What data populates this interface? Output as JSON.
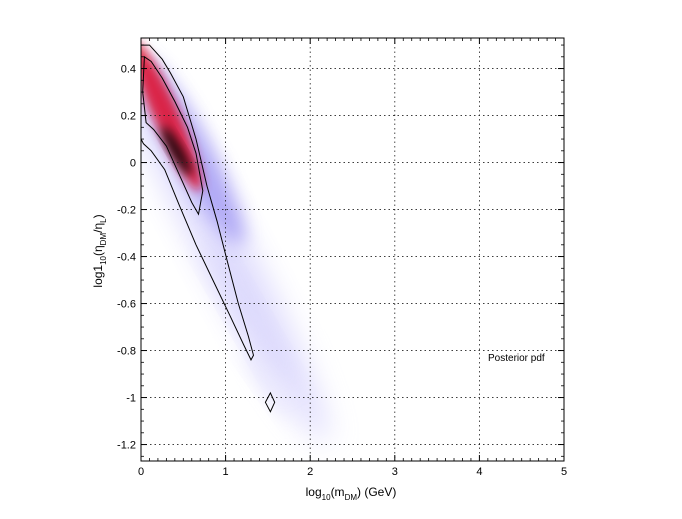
{
  "chart_data": {
    "type": "heatmap",
    "title": "",
    "annotation": "Posterior pdf",
    "xlabel": {
      "prefix": "log",
      "sub1": "10",
      "mid": "(m",
      "sub2": "DM",
      "suffix": ") (GeV)"
    },
    "ylabel": {
      "prefix": "log1",
      "sub1": "10",
      "mid": "(η",
      "sub2": "DM",
      "mid2": "/η",
      "sub3": "L",
      "suffix": ")"
    },
    "xlim": [
      0,
      5
    ],
    "ylim": [
      -1.27,
      0.53
    ],
    "xticks": [
      0,
      1,
      2,
      3,
      4,
      5
    ],
    "yticks": [
      0.4,
      0.2,
      0,
      -0.2,
      -0.4,
      -0.6,
      -0.8,
      -1,
      -1.2
    ],
    "xtick_labels": [
      "0",
      "1",
      "2",
      "3",
      "4",
      "5"
    ],
    "ytick_labels": [
      "0.4",
      "0.2",
      "0",
      "-0.2",
      "-0.4",
      "-0.6",
      "-0.8",
      "-1",
      "-1.2"
    ],
    "grid": true,
    "colormap": {
      "low": "#ffffff",
      "mid": "#8c82f0",
      "high": "#e00010",
      "peak": "#000000"
    },
    "density_blobs": [
      {
        "x": 0.95,
        "y": -0.35,
        "sx": 0.55,
        "sy": 0.95,
        "rot": 62,
        "color": "#c7c2fb",
        "opacity": 0.55
      },
      {
        "x": 1.25,
        "y": -0.65,
        "sx": 0.26,
        "sy": 0.35,
        "rot": 60,
        "color": "#d5d1fc",
        "opacity": 0.55
      },
      {
        "x": 1.5,
        "y": -0.95,
        "sx": 0.18,
        "sy": 0.18,
        "rot": 55,
        "color": "#e4e2fd",
        "opacity": 0.6
      },
      {
        "x": 0.6,
        "y": 0.05,
        "sx": 0.42,
        "sy": 0.45,
        "rot": 62,
        "color": "#9d94f3",
        "opacity": 0.75
      },
      {
        "x": 0.3,
        "y": 0.2,
        "sx": 0.28,
        "sy": 0.35,
        "rot": 66,
        "color": "#e0102c",
        "opacity": 0.85
      },
      {
        "x": 0.42,
        "y": 0.05,
        "sx": 0.12,
        "sy": 0.12,
        "rot": 60,
        "color": "#000000",
        "opacity": 0.9
      }
    ],
    "contours": [
      {
        "level": "outer",
        "points": [
          [
            0.0,
            0.5
          ],
          [
            0.1,
            0.5
          ],
          [
            0.25,
            0.44
          ],
          [
            0.35,
            0.38
          ],
          [
            0.5,
            0.28
          ],
          [
            0.65,
            0.1
          ],
          [
            0.78,
            -0.1
          ],
          [
            0.9,
            -0.25
          ],
          [
            1.02,
            -0.42
          ],
          [
            1.15,
            -0.6
          ],
          [
            1.27,
            -0.74
          ],
          [
            1.33,
            -0.82
          ],
          [
            1.3,
            -0.84
          ],
          [
            1.22,
            -0.78
          ],
          [
            1.05,
            -0.65
          ],
          [
            0.85,
            -0.5
          ],
          [
            0.65,
            -0.35
          ],
          [
            0.45,
            -0.18
          ],
          [
            0.28,
            -0.03
          ],
          [
            0.12,
            0.05
          ],
          [
            0.03,
            0.08
          ],
          [
            0.0,
            0.1
          ]
        ]
      },
      {
        "level": "inner",
        "points": [
          [
            0.04,
            0.45
          ],
          [
            0.12,
            0.43
          ],
          [
            0.25,
            0.36
          ],
          [
            0.4,
            0.26
          ],
          [
            0.55,
            0.15
          ],
          [
            0.65,
            0.04
          ],
          [
            0.73,
            -0.12
          ],
          [
            0.68,
            -0.22
          ],
          [
            0.6,
            -0.17
          ],
          [
            0.45,
            -0.05
          ],
          [
            0.3,
            0.07
          ],
          [
            0.15,
            0.14
          ],
          [
            0.06,
            0.17
          ],
          [
            0.02,
            0.3
          ]
        ]
      },
      {
        "level": "island",
        "points": [
          [
            1.53,
            -0.98
          ],
          [
            1.58,
            -1.02
          ],
          [
            1.53,
            -1.06
          ],
          [
            1.47,
            -1.02
          ]
        ]
      }
    ]
  }
}
